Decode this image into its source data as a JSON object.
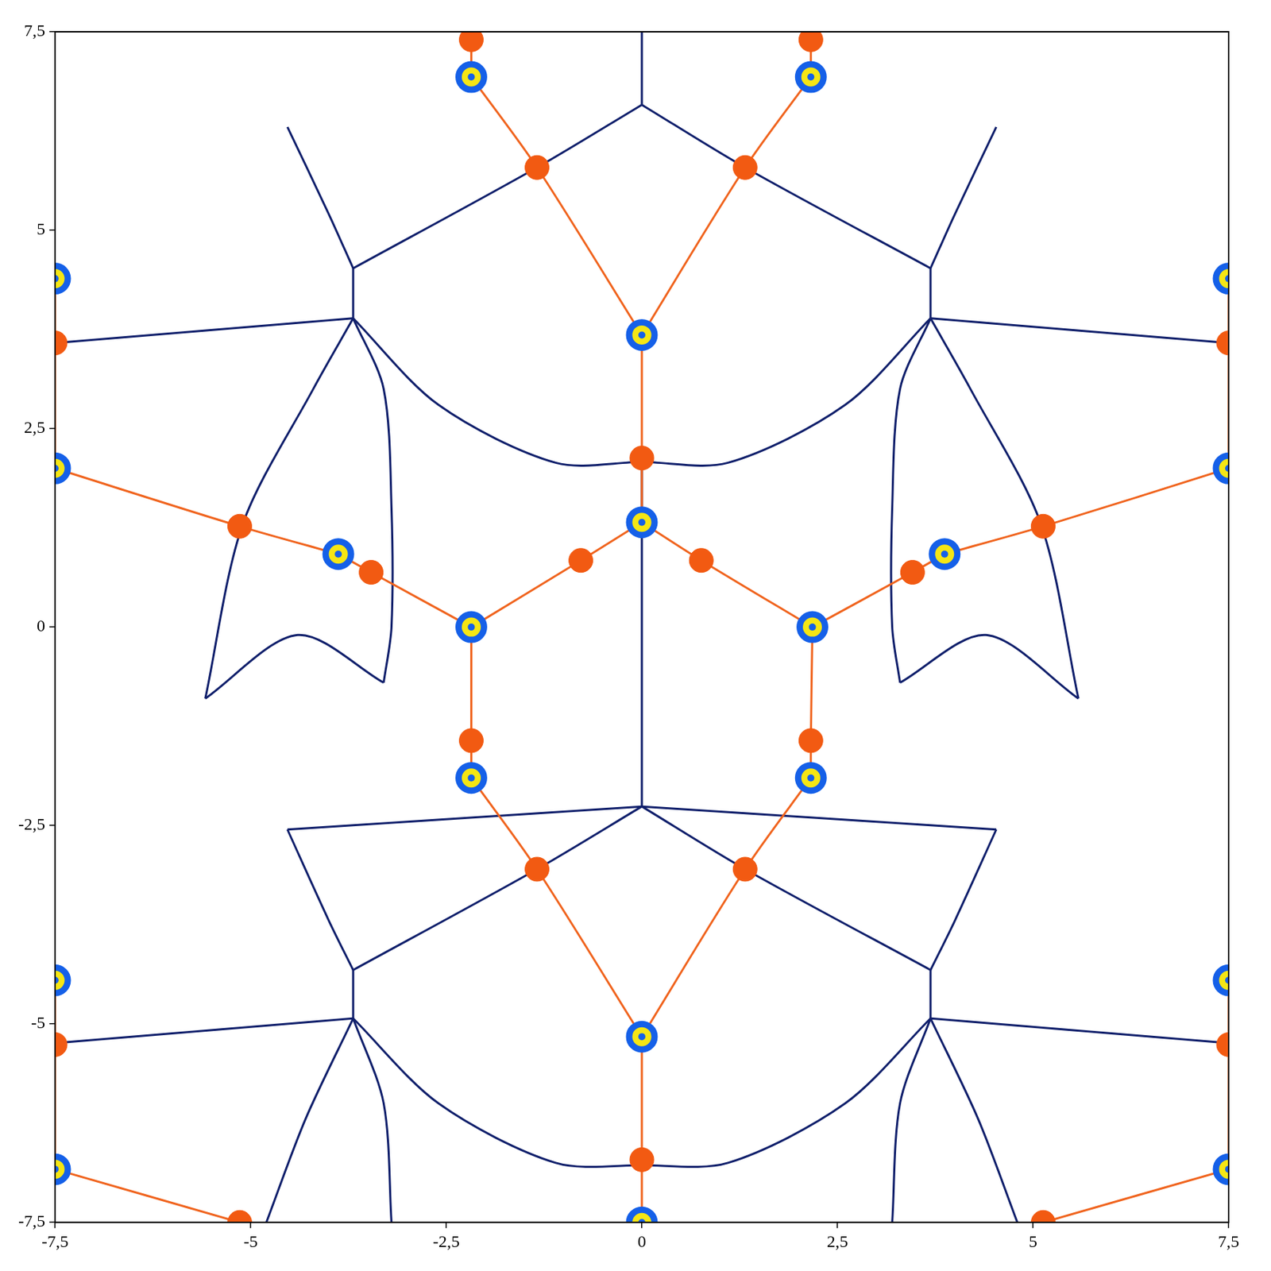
{
  "chart_data": {
    "type": "scatter",
    "xlim": [
      -7.5,
      7.5
    ],
    "ylim": [
      -7.5,
      7.5
    ],
    "xticks": [
      {
        "value": -7.5,
        "label": "-7,5"
      },
      -5,
      {
        "value": -2.5,
        "label": "-2,5"
      },
      0,
      {
        "value": 2.5,
        "label": "2,5"
      },
      5,
      {
        "value": 7.5,
        "label": "7,5"
      }
    ],
    "yticks": [
      {
        "value": -7.5,
        "label": "-7,5"
      },
      -5,
      {
        "value": -2.5,
        "label": "-2,5"
      },
      0,
      {
        "value": 2.5,
        "label": "2,5"
      },
      5,
      {
        "value": 7.5,
        "label": "7,5"
      }
    ],
    "grid": false,
    "series": [
      {
        "type": "scatter",
        "marker": "ring",
        "color": "#1560e8",
        "points": [
          [
            -2.18,
            6.93
          ],
          [
            2.16,
            6.93
          ],
          [
            0,
            3.68
          ],
          [
            -7.5,
            4.39
          ],
          [
            7.5,
            4.39
          ],
          [
            -7.5,
            2.0
          ],
          [
            7.5,
            2.0
          ],
          [
            -3.88,
            0.92
          ],
          [
            3.87,
            0.92
          ],
          [
            0,
            1.32
          ],
          [
            -2.18,
            0
          ],
          [
            2.18,
            0
          ],
          [
            -2.18,
            -1.9
          ],
          [
            2.16,
            -1.9
          ],
          [
            0,
            -5.16
          ],
          [
            -7.5,
            -4.45
          ],
          [
            7.5,
            -4.45
          ],
          [
            -7.5,
            -6.83
          ],
          [
            7.5,
            -6.83
          ],
          [
            0,
            -7.5
          ]
        ]
      },
      {
        "type": "scatter",
        "marker": "circle",
        "color": "#f25a12",
        "points": [
          [
            -2.18,
            7.4
          ],
          [
            2.16,
            7.4
          ],
          [
            -1.34,
            5.79
          ],
          [
            1.32,
            5.79
          ],
          [
            -7.5,
            3.58
          ],
          [
            7.5,
            3.58
          ],
          [
            0,
            2.13
          ],
          [
            -5.14,
            1.27
          ],
          [
            5.13,
            1.27
          ],
          [
            -3.46,
            0.69
          ],
          [
            3.46,
            0.69
          ],
          [
            -0.78,
            0.84
          ],
          [
            0.76,
            0.84
          ],
          [
            -2.18,
            -1.43
          ],
          [
            2.16,
            -1.43
          ],
          [
            -1.34,
            -3.05
          ],
          [
            1.32,
            -3.05
          ],
          [
            -7.5,
            -5.26
          ],
          [
            7.5,
            -5.26
          ],
          [
            0,
            -6.71
          ],
          [
            -5.14,
            -7.5
          ],
          [
            5.13,
            -7.5
          ]
        ]
      },
      {
        "type": "line",
        "line_style": "solid",
        "color": "#f0641e",
        "paths": [
          [
            [
              -2.18,
              6.93
            ],
            [
              -2.18,
              7.4
            ],
            [
              -2.18,
              7.5
            ]
          ],
          [
            [
              2.16,
              6.93
            ],
            [
              2.16,
              7.4
            ],
            [
              2.16,
              7.5
            ]
          ],
          [
            [
              -2.18,
              6.93
            ],
            [
              -1.34,
              5.79
            ],
            [
              0,
              3.68
            ]
          ],
          [
            [
              2.16,
              6.93
            ],
            [
              1.32,
              5.79
            ],
            [
              0,
              3.68
            ]
          ],
          [
            [
              0,
              3.68
            ],
            [
              0,
              2.13
            ],
            [
              0,
              1.32
            ]
          ],
          [
            [
              0,
              1.32
            ],
            [
              -0.78,
              0.84
            ],
            [
              -2.18,
              0
            ]
          ],
          [
            [
              0,
              1.32
            ],
            [
              0.76,
              0.84
            ],
            [
              2.18,
              0
            ]
          ],
          [
            [
              -2.18,
              0
            ],
            [
              -3.46,
              0.69
            ],
            [
              -3.88,
              0.92
            ]
          ],
          [
            [
              2.18,
              0
            ],
            [
              3.46,
              0.69
            ],
            [
              3.87,
              0.92
            ]
          ],
          [
            [
              -3.88,
              0.92
            ],
            [
              -5.14,
              1.27
            ],
            [
              -7.5,
              2.0
            ]
          ],
          [
            [
              3.87,
              0.92
            ],
            [
              5.13,
              1.27
            ],
            [
              7.5,
              2.0
            ]
          ],
          [
            [
              -7.5,
              4.39
            ],
            [
              -7.5,
              3.58
            ],
            [
              -7.5,
              2.0
            ]
          ],
          [
            [
              7.5,
              4.39
            ],
            [
              7.5,
              3.58
            ],
            [
              7.5,
              2.0
            ]
          ],
          [
            [
              -2.18,
              0
            ],
            [
              -2.18,
              -1.43
            ],
            [
              -2.18,
              -1.9
            ]
          ],
          [
            [
              2.18,
              0
            ],
            [
              2.16,
              -1.43
            ],
            [
              2.16,
              -1.9
            ]
          ],
          [
            [
              -2.18,
              -1.9
            ],
            [
              -1.34,
              -3.05
            ],
            [
              0,
              -5.16
            ]
          ],
          [
            [
              2.16,
              -1.9
            ],
            [
              1.32,
              -3.05
            ],
            [
              0,
              -5.16
            ]
          ],
          [
            [
              0,
              -5.16
            ],
            [
              0,
              -6.71
            ],
            [
              0,
              -7.5
            ]
          ],
          [
            [
              -7.5,
              -4.45
            ],
            [
              -7.5,
              -5.26
            ],
            [
              -7.5,
              -6.83
            ]
          ],
          [
            [
              7.5,
              -4.45
            ],
            [
              7.5,
              -5.26
            ],
            [
              7.5,
              -6.83
            ]
          ],
          [
            [
              -7.5,
              -6.83
            ],
            [
              -5.14,
              -7.5
            ]
          ],
          [
            [
              7.5,
              -6.83
            ],
            [
              5.13,
              -7.5
            ]
          ]
        ]
      },
      {
        "type": "line",
        "line_style": "solid",
        "color": "#101f6b",
        "paths": [
          [
            [
              0,
              7.5
            ],
            [
              0,
              6.58
            ]
          ],
          [
            [
              0,
              6.58
            ],
            [
              -1.34,
              5.79
            ],
            [
              -3.69,
              4.52
            ]
          ],
          [
            [
              0,
              6.58
            ],
            [
              1.32,
              5.79
            ],
            [
              3.69,
              4.52
            ]
          ],
          [
            [
              -4.53,
              6.3
            ],
            [
              -4.0,
              5.2
            ],
            [
              -3.69,
              4.52
            ]
          ],
          [
            [
              4.53,
              6.3
            ],
            [
              4.0,
              5.2
            ],
            [
              3.69,
              4.52
            ]
          ],
          [
            [
              -3.69,
              4.52
            ],
            [
              -3.69,
              3.89
            ]
          ],
          [
            [
              3.69,
              4.52
            ],
            [
              3.69,
              3.89
            ]
          ],
          [
            [
              -3.69,
              3.89
            ],
            [
              -7.5,
              3.58
            ]
          ],
          [
            [
              3.69,
              3.89
            ],
            [
              7.5,
              3.58
            ]
          ],
          [
            [
              -3.69,
              3.89
            ],
            [
              -2.6,
              2.8
            ],
            [
              -1.1,
              2.07
            ],
            [
              0,
              2.08
            ],
            [
              1.1,
              2.07
            ],
            [
              2.6,
              2.8
            ],
            [
              3.69,
              3.89
            ]
          ],
          [
            [
              -3.69,
              3.89
            ],
            [
              -4.2,
              3.0
            ],
            [
              -5.1,
              1.3
            ],
            [
              -5.58,
              -0.9
            ]
          ],
          [
            [
              3.69,
              3.89
            ],
            [
              4.2,
              3.0
            ],
            [
              5.1,
              1.3
            ],
            [
              5.58,
              -0.9
            ]
          ],
          [
            [
              -3.69,
              3.89
            ],
            [
              -3.3,
              3.0
            ],
            [
              -3.2,
              1.5
            ],
            [
              -3.2,
              0.0
            ],
            [
              -3.3,
              -0.7
            ]
          ],
          [
            [
              3.69,
              3.89
            ],
            [
              3.3,
              3.0
            ],
            [
              3.2,
              1.5
            ],
            [
              3.2,
              0.0
            ],
            [
              3.3,
              -0.7
            ]
          ],
          [
            [
              -5.58,
              -0.9
            ],
            [
              -4.4,
              -0.1
            ],
            [
              -3.3,
              -0.7
            ]
          ],
          [
            [
              5.58,
              -0.9
            ],
            [
              4.4,
              -0.1
            ],
            [
              3.3,
              -0.7
            ]
          ],
          [
            [
              0,
              2.08
            ],
            [
              0,
              -2.26
            ]
          ],
          [
            [
              0,
              -2.26
            ],
            [
              -4.53,
              -2.55
            ]
          ],
          [
            [
              0,
              -2.26
            ],
            [
              4.53,
              -2.55
            ]
          ],
          [
            [
              0,
              -2.26
            ],
            [
              -1.34,
              -3.05
            ],
            [
              -3.69,
              -4.32
            ]
          ],
          [
            [
              0,
              -2.26
            ],
            [
              1.32,
              -3.05
            ],
            [
              3.69,
              -4.32
            ]
          ],
          [
            [
              -4.53,
              -2.55
            ],
            [
              -4.0,
              -3.7
            ],
            [
              -3.69,
              -4.32
            ]
          ],
          [
            [
              4.53,
              -2.55
            ],
            [
              4.0,
              -3.7
            ],
            [
              3.69,
              -4.32
            ]
          ],
          [
            [
              -3.69,
              -4.32
            ],
            [
              -3.69,
              -4.93
            ]
          ],
          [
            [
              3.69,
              -4.32
            ],
            [
              3.69,
              -4.93
            ]
          ],
          [
            [
              -3.69,
              -4.93
            ],
            [
              -7.5,
              -5.24
            ]
          ],
          [
            [
              3.69,
              -4.93
            ],
            [
              7.5,
              -5.24
            ]
          ],
          [
            [
              -3.69,
              -4.93
            ],
            [
              -2.6,
              -6.0
            ],
            [
              -1.1,
              -6.75
            ],
            [
              0,
              -6.78
            ],
            [
              1.1,
              -6.75
            ],
            [
              2.6,
              -6.0
            ],
            [
              3.69,
              -4.93
            ]
          ],
          [
            [
              -3.69,
              -4.93
            ],
            [
              -3.3,
              -6.0
            ],
            [
              -3.2,
              -7.5
            ]
          ],
          [
            [
              3.69,
              -4.93
            ],
            [
              3.3,
              -6.0
            ],
            [
              3.2,
              -7.5
            ]
          ],
          [
            [
              -3.69,
              -4.93
            ],
            [
              -4.3,
              -6.2
            ],
            [
              -4.8,
              -7.5
            ]
          ],
          [
            [
              3.69,
              -4.93
            ],
            [
              4.3,
              -6.2
            ],
            [
              4.8,
              -7.5
            ]
          ]
        ]
      }
    ]
  }
}
